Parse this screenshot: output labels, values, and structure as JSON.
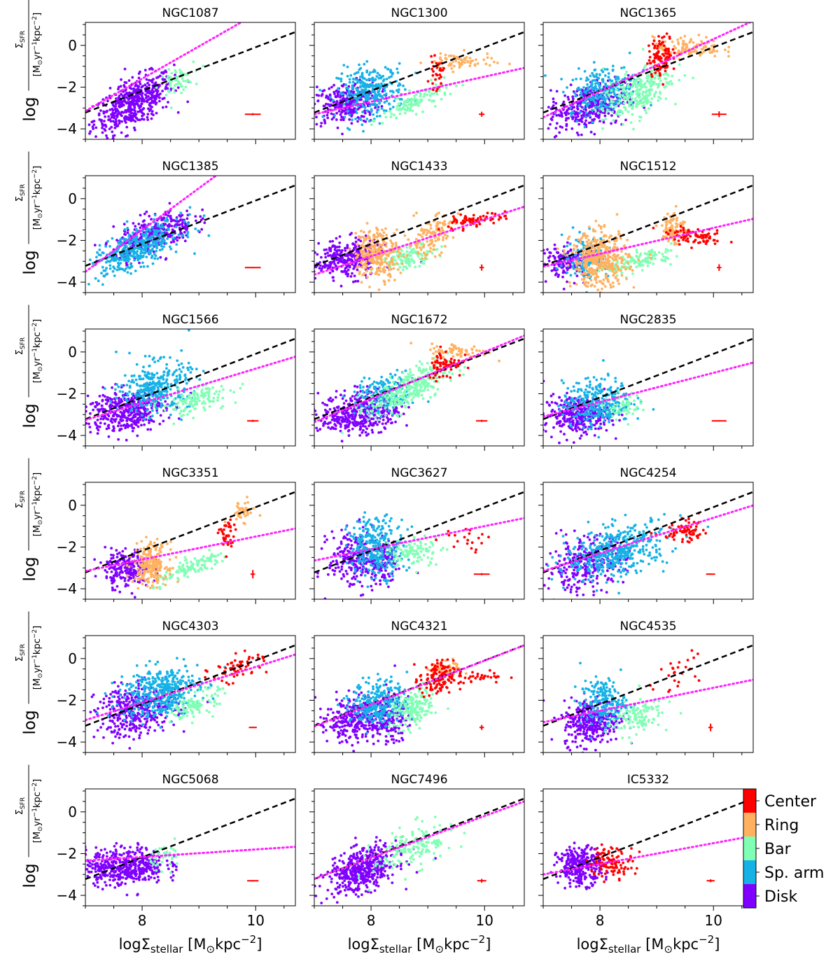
{
  "chart_data": {
    "type": "scatter",
    "layout": "6 rows x 3 columns of small-multiple scatter panels with shared axes",
    "xlabel": {
      "prefix": "log",
      "symbol": "Σ",
      "sub": "stellar",
      "units": " [M",
      "sun": "⊙",
      "units2": "kpc",
      "exp": "−2",
      "close": "]"
    },
    "ylabel": {
      "prefix": "log",
      "numer": "Σ",
      "numer_sub": "SFR",
      "denom": "[M",
      "denom_sun": "⊙",
      "denom_mid": "yr",
      "exp1": "−1",
      "kpc": "kpc",
      "exp2": "−2",
      "close": "]"
    },
    "xlim": [
      7.0,
      10.7
    ],
    "ylim": [
      -4.5,
      1.1
    ],
    "x_ticks": [
      8,
      10
    ],
    "y_ticks": [
      0,
      -2,
      -4
    ],
    "x_tick_labels": [
      "8",
      "10"
    ],
    "y_tick_labels": [
      "0",
      "−2",
      "−4"
    ],
    "legend": {
      "placement": "colorbar right of bottom-right panel",
      "entries": [
        {
          "label": "Center",
          "color": "#ff0000"
        },
        {
          "label": "Ring",
          "color": "#ffb160"
        },
        {
          "label": "Bar",
          "color": "#80ffb4"
        },
        {
          "label": "Sp. arm",
          "color": "#16b2e6"
        },
        {
          "label": "Disk",
          "color": "#8000ff"
        }
      ]
    },
    "reference_line": {
      "style": "black dashed",
      "slope": 1.043,
      "intercept": -10.52
    },
    "fit_line_style": "magenta dotted",
    "panels": [
      {
        "name": "NGC1087",
        "fit": {
          "slope": 1.55,
          "intercept": -14.0
        },
        "err": {
          "x": 9.95,
          "y": -3.3,
          "dx": 0.14,
          "dy": 0.05
        },
        "regions": [
          {
            "r": "Disk",
            "xc": 7.85,
            "yc": -2.75,
            "sx": 0.35,
            "sy": 0.55,
            "slope": 1.2,
            "n": 520
          },
          {
            "r": "Bar",
            "xc": 8.6,
            "yc": -1.7,
            "sx": 0.15,
            "sy": 0.3,
            "slope": 1.0,
            "n": 60
          }
        ]
      },
      {
        "name": "NGC1300",
        "fit": {
          "slope": 0.6,
          "intercept": -7.5
        },
        "err": {
          "x": 9.95,
          "y": -3.3,
          "dx": 0.05,
          "dy": 0.12
        },
        "regions": [
          {
            "r": "Disk",
            "xc": 7.55,
            "yc": -2.8,
            "sx": 0.3,
            "sy": 0.5,
            "slope": 0.3,
            "n": 300
          },
          {
            "r": "Sp. arm",
            "xc": 8.0,
            "yc": -2.2,
            "sx": 0.3,
            "sy": 0.6,
            "slope": 0.2,
            "n": 300
          },
          {
            "r": "Bar",
            "xc": 8.8,
            "yc": -2.7,
            "sx": 0.3,
            "sy": 0.25,
            "slope": 1.2,
            "n": 120
          },
          {
            "r": "Center",
            "xc": 9.15,
            "yc": -1.4,
            "sx": 0.06,
            "sy": 0.35,
            "slope": 0,
            "n": 30
          },
          {
            "r": "Ring",
            "xc": 9.55,
            "yc": -0.8,
            "sx": 0.3,
            "sy": 0.22,
            "slope": 0,
            "n": 70
          }
        ]
      },
      {
        "name": "NGC1365",
        "fit": {
          "slope": 1.25,
          "intercept": -12.2
        },
        "err": {
          "x": 10.1,
          "y": -3.3,
          "dx": 0.13,
          "dy": 0.14
        },
        "regions": [
          {
            "r": "Disk",
            "xc": 7.8,
            "yc": -2.9,
            "sx": 0.35,
            "sy": 0.55,
            "slope": 0.5,
            "n": 380
          },
          {
            "r": "Sp. arm",
            "xc": 8.05,
            "yc": -2.1,
            "sx": 0.3,
            "sy": 0.55,
            "slope": 0.5,
            "n": 250
          },
          {
            "r": "Bar",
            "xc": 8.65,
            "yc": -2.3,
            "sx": 0.3,
            "sy": 0.55,
            "slope": 1.3,
            "n": 260
          },
          {
            "r": "Center",
            "xc": 9.1,
            "yc": -0.5,
            "sx": 0.12,
            "sy": 0.45,
            "slope": 0.6,
            "n": 110
          },
          {
            "r": "Ring",
            "xc": 9.55,
            "yc": -0.1,
            "sx": 0.3,
            "sy": 0.25,
            "slope": 0,
            "n": 110
          }
        ]
      },
      {
        "name": "NGC1385",
        "fit": {
          "slope": 2.0,
          "intercept": -17.5
        },
        "err": {
          "x": 9.95,
          "y": -3.3,
          "dx": 0.14,
          "dy": 0.03
        },
        "regions": [
          {
            "r": "Sp. arm",
            "xc": 7.9,
            "yc": -2.4,
            "sx": 0.4,
            "sy": 0.45,
            "slope": 1.1,
            "n": 420
          },
          {
            "r": "Disk",
            "xc": 8.2,
            "yc": -1.7,
            "sx": 0.35,
            "sy": 0.45,
            "slope": 0.9,
            "n": 330
          }
        ]
      },
      {
        "name": "NGC1433",
        "fit": {
          "slope": 0.88,
          "intercept": -9.8
        },
        "err": {
          "x": 9.95,
          "y": -3.3,
          "dx": 0.04,
          "dy": 0.15
        },
        "regions": [
          {
            "r": "Disk",
            "xc": 7.6,
            "yc": -2.9,
            "sx": 0.3,
            "sy": 0.45,
            "slope": 0.2,
            "n": 330
          },
          {
            "r": "Ring",
            "xc": 8.1,
            "yc": -2.6,
            "sx": 0.2,
            "sy": 0.6,
            "slope": 0,
            "n": 280
          },
          {
            "r": "Bar",
            "xc": 8.65,
            "yc": -2.8,
            "sx": 0.25,
            "sy": 0.25,
            "slope": 0.7,
            "n": 120
          },
          {
            "r": "Ring",
            "xc": 9.05,
            "yc": -1.8,
            "sx": 0.2,
            "sy": 0.45,
            "slope": 1.0,
            "n": 130
          },
          {
            "r": "Center",
            "xc": 9.75,
            "yc": -1.1,
            "sx": 0.3,
            "sy": 0.15,
            "slope": 0.5,
            "n": 70
          }
        ]
      },
      {
        "name": "NGC1512",
        "fit": {
          "slope": 0.62,
          "intercept": -7.6
        },
        "err": {
          "x": 10.1,
          "y": -3.3,
          "dx": 0.04,
          "dy": 0.16
        },
        "regions": [
          {
            "r": "Disk",
            "xc": 7.45,
            "yc": -3.0,
            "sx": 0.25,
            "sy": 0.4,
            "slope": 0,
            "n": 160
          },
          {
            "r": "Sp. arm",
            "xc": 7.75,
            "yc": -2.8,
            "sx": 0.2,
            "sy": 0.5,
            "slope": 0,
            "n": 140
          },
          {
            "r": "Ring",
            "xc": 8.0,
            "yc": -2.9,
            "sx": 0.25,
            "sy": 0.65,
            "slope": 0,
            "n": 420
          },
          {
            "r": "Bar",
            "xc": 8.7,
            "yc": -3.0,
            "sx": 0.3,
            "sy": 0.22,
            "slope": 0.7,
            "n": 130
          },
          {
            "r": "Ring",
            "xc": 9.3,
            "yc": -1.4,
            "sx": 0.1,
            "sy": 0.4,
            "slope": 0,
            "n": 90
          },
          {
            "r": "Center",
            "xc": 9.7,
            "yc": -1.85,
            "sx": 0.25,
            "sy": 0.18,
            "slope": -0.3,
            "n": 80
          }
        ]
      },
      {
        "name": "NGC1566",
        "fit": {
          "slope": 0.82,
          "intercept": -9.0
        },
        "err": {
          "x": 9.95,
          "y": -3.3,
          "dx": 0.1,
          "dy": 0.05
        },
        "regions": [
          {
            "r": "Disk",
            "xc": 7.7,
            "yc": -2.8,
            "sx": 0.35,
            "sy": 0.5,
            "slope": 0.2,
            "n": 400
          },
          {
            "r": "Sp. arm",
            "xc": 8.25,
            "yc": -1.7,
            "sx": 0.3,
            "sy": 0.6,
            "slope": 0.3,
            "n": 330
          },
          {
            "r": "Bar",
            "xc": 8.95,
            "yc": -2.3,
            "sx": 0.3,
            "sy": 0.3,
            "slope": 0.8,
            "n": 130
          }
        ]
      },
      {
        "name": "NGC1672",
        "fit": {
          "slope": 1.12,
          "intercept": -11.2
        },
        "err": {
          "x": 9.95,
          "y": -3.3,
          "dx": 0.1,
          "dy": 0.05
        },
        "regions": [
          {
            "r": "Disk",
            "xc": 7.8,
            "yc": -2.9,
            "sx": 0.35,
            "sy": 0.5,
            "slope": 0.3,
            "n": 420
          },
          {
            "r": "Sp. arm",
            "xc": 8.25,
            "yc": -2.0,
            "sx": 0.25,
            "sy": 0.45,
            "slope": 0.3,
            "n": 180
          },
          {
            "r": "Bar",
            "xc": 8.65,
            "yc": -1.8,
            "sx": 0.35,
            "sy": 0.45,
            "slope": 1.2,
            "n": 300
          },
          {
            "r": "Center",
            "xc": 9.3,
            "yc": -0.6,
            "sx": 0.15,
            "sy": 0.35,
            "slope": 0.3,
            "n": 70
          },
          {
            "r": "Ring",
            "xc": 9.55,
            "yc": 0.0,
            "sx": 0.25,
            "sy": 0.2,
            "slope": 0,
            "n": 70
          }
        ]
      },
      {
        "name": "NGC2835",
        "fit": {
          "slope": 0.7,
          "intercept": -8.0
        },
        "err": {
          "x": 10.1,
          "y": -3.3,
          "dx": 0.13,
          "dy": 0.03
        },
        "regions": [
          {
            "r": "Disk",
            "xc": 7.6,
            "yc": -3.0,
            "sx": 0.3,
            "sy": 0.45,
            "slope": 0,
            "n": 320
          },
          {
            "r": "Sp. arm",
            "xc": 7.95,
            "yc": -2.4,
            "sx": 0.3,
            "sy": 0.55,
            "slope": 0.2,
            "n": 300
          },
          {
            "r": "Bar",
            "xc": 8.4,
            "yc": -2.6,
            "sx": 0.15,
            "sy": 0.3,
            "slope": 0.5,
            "n": 60
          }
        ]
      },
      {
        "name": "NGC3351",
        "fit": {
          "slope": 0.55,
          "intercept": -7.0
        },
        "err": {
          "x": 9.95,
          "y": -3.3,
          "dx": 0.04,
          "dy": 0.2
        },
        "regions": [
          {
            "r": "Disk",
            "xc": 7.75,
            "yc": -3.0,
            "sx": 0.2,
            "sy": 0.45,
            "slope": 0,
            "n": 240
          },
          {
            "r": "Ring",
            "xc": 8.15,
            "yc": -2.8,
            "sx": 0.15,
            "sy": 0.5,
            "slope": 0,
            "n": 220
          },
          {
            "r": "Bar",
            "xc": 8.9,
            "yc": -3.0,
            "sx": 0.35,
            "sy": 0.2,
            "slope": 1.1,
            "n": 120
          },
          {
            "r": "Center",
            "xc": 9.5,
            "yc": -1.5,
            "sx": 0.07,
            "sy": 0.4,
            "slope": 0,
            "n": 40
          },
          {
            "r": "Ring",
            "xc": 9.75,
            "yc": -0.3,
            "sx": 0.12,
            "sy": 0.25,
            "slope": 0,
            "n": 40
          }
        ]
      },
      {
        "name": "NGC3627",
        "fit": {
          "slope": 0.55,
          "intercept": -6.5
        },
        "err": {
          "x": 9.95,
          "y": -3.3,
          "dx": 0.14,
          "dy": 0.05
        },
        "regions": [
          {
            "r": "Disk",
            "xc": 7.75,
            "yc": -2.6,
            "sx": 0.25,
            "sy": 0.7,
            "slope": 0,
            "n": 260
          },
          {
            "r": "Sp. arm",
            "xc": 8.1,
            "yc": -2.0,
            "sx": 0.25,
            "sy": 0.7,
            "slope": 0,
            "n": 300
          },
          {
            "r": "Disk",
            "xc": 8.25,
            "yc": -2.7,
            "sx": 0.1,
            "sy": 0.5,
            "slope": 0,
            "n": 90
          },
          {
            "r": "Bar",
            "xc": 8.75,
            "yc": -2.2,
            "sx": 0.25,
            "sy": 0.35,
            "slope": 0.3,
            "n": 110
          },
          {
            "r": "Center",
            "xc": 9.6,
            "yc": -1.6,
            "sx": 0.25,
            "sy": 0.3,
            "slope": 0,
            "n": 20
          }
        ]
      },
      {
        "name": "NGC4254",
        "fit": {
          "slope": 0.85,
          "intercept": -9.1
        },
        "err": {
          "x": 9.95,
          "y": -3.3,
          "dx": 0.08,
          "dy": 0.03
        },
        "regions": [
          {
            "r": "Disk",
            "xc": 7.75,
            "yc": -2.8,
            "sx": 0.35,
            "sy": 0.6,
            "slope": 0.5,
            "n": 320
          },
          {
            "r": "Sp. arm",
            "xc": 8.3,
            "yc": -2.2,
            "sx": 0.45,
            "sy": 0.6,
            "slope": 0.6,
            "n": 430
          },
          {
            "r": "Center",
            "xc": 9.5,
            "yc": -1.3,
            "sx": 0.2,
            "sy": 0.25,
            "slope": 0.4,
            "n": 70
          }
        ]
      },
      {
        "name": "NGC4303",
        "fit": {
          "slope": 0.85,
          "intercept": -8.9
        },
        "err": {
          "x": 9.95,
          "y": -3.3,
          "dx": 0.07,
          "dy": 0.03
        },
        "regions": [
          {
            "r": "Disk",
            "xc": 7.9,
            "yc": -2.5,
            "sx": 0.35,
            "sy": 0.6,
            "slope": 0.3,
            "n": 380
          },
          {
            "r": "Sp. arm",
            "xc": 8.3,
            "yc": -1.6,
            "sx": 0.35,
            "sy": 0.6,
            "slope": 0.4,
            "n": 400
          },
          {
            "r": "Bar",
            "xc": 8.95,
            "yc": -2.2,
            "sx": 0.2,
            "sy": 0.3,
            "slope": 0.9,
            "n": 110
          },
          {
            "r": "Center",
            "xc": 9.7,
            "yc": -0.4,
            "sx": 0.25,
            "sy": 0.3,
            "slope": 0.6,
            "n": 60
          }
        ]
      },
      {
        "name": "NGC4321",
        "fit": {
          "slope": 1.05,
          "intercept": -10.6
        },
        "err": {
          "x": 9.95,
          "y": -3.3,
          "dx": 0.04,
          "dy": 0.12
        },
        "regions": [
          {
            "r": "Disk",
            "xc": 7.75,
            "yc": -2.9,
            "sx": 0.35,
            "sy": 0.55,
            "slope": 0.3,
            "n": 350
          },
          {
            "r": "Sp. arm",
            "xc": 8.15,
            "yc": -2.1,
            "sx": 0.25,
            "sy": 0.55,
            "slope": 0.3,
            "n": 280
          },
          {
            "r": "Disk",
            "xc": 8.35,
            "yc": -2.9,
            "sx": 0.15,
            "sy": 0.5,
            "slope": 0,
            "n": 100
          },
          {
            "r": "Bar",
            "xc": 8.75,
            "yc": -2.4,
            "sx": 0.2,
            "sy": 0.45,
            "slope": 1.0,
            "n": 170
          },
          {
            "r": "Center",
            "xc": 9.15,
            "yc": -1.0,
            "sx": 0.15,
            "sy": 0.45,
            "slope": 0,
            "n": 120
          },
          {
            "r": "Ring",
            "xc": 9.35,
            "yc": -0.5,
            "sx": 0.15,
            "sy": 0.2,
            "slope": 0,
            "n": 50
          },
          {
            "r": "Center",
            "xc": 9.8,
            "yc": -0.85,
            "sx": 0.3,
            "sy": 0.15,
            "slope": 0,
            "n": 40
          }
        ]
      },
      {
        "name": "NGC4535",
        "fit": {
          "slope": 0.55,
          "intercept": -6.9
        },
        "err": {
          "x": 9.95,
          "y": -3.3,
          "dx": 0.04,
          "dy": 0.18
        },
        "regions": [
          {
            "r": "Disk",
            "xc": 7.85,
            "yc": -3.0,
            "sx": 0.25,
            "sy": 0.55,
            "slope": 0.2,
            "n": 330
          },
          {
            "r": "Sp. arm",
            "xc": 8.05,
            "yc": -2.1,
            "sx": 0.2,
            "sy": 0.55,
            "slope": 0.2,
            "n": 200
          },
          {
            "r": "Bar",
            "xc": 8.6,
            "yc": -2.8,
            "sx": 0.25,
            "sy": 0.4,
            "slope": 0.7,
            "n": 120
          },
          {
            "r": "Center",
            "xc": 9.35,
            "yc": -0.9,
            "sx": 0.25,
            "sy": 0.45,
            "slope": 1.5,
            "n": 25
          }
        ]
      },
      {
        "name": "NGC5068",
        "fit": {
          "slope": 0.18,
          "intercept": -3.6
        },
        "err": {
          "x": 9.95,
          "y": -3.3,
          "dx": 0.1,
          "dy": 0.03
        },
        "regions": [
          {
            "r": "Disk",
            "xc": 7.7,
            "yc": -2.6,
            "sx": 0.35,
            "sy": 0.45,
            "slope": 0.1,
            "n": 450
          },
          {
            "r": "Bar",
            "xc": 8.45,
            "yc": -2.1,
            "sx": 0.15,
            "sy": 0.3,
            "slope": 0,
            "n": 45
          }
        ]
      },
      {
        "name": "NGC7496",
        "fit": {
          "slope": 1.0,
          "intercept": -10.2
        },
        "err": {
          "x": 9.95,
          "y": -3.3,
          "dx": 0.08,
          "dy": 0.09
        },
        "regions": [
          {
            "r": "Disk",
            "xc": 7.85,
            "yc": -2.8,
            "sx": 0.3,
            "sy": 0.5,
            "slope": 0.8,
            "n": 480
          },
          {
            "r": "Bar",
            "xc": 8.75,
            "yc": -1.7,
            "sx": 0.35,
            "sy": 0.5,
            "slope": 0.9,
            "n": 170
          }
        ]
      },
      {
        "name": "IC5332",
        "fit": {
          "slope": 0.5,
          "intercept": -6.5
        },
        "err": {
          "x": 9.95,
          "y": -3.3,
          "dx": 0.07,
          "dy": 0.07
        },
        "regions": [
          {
            "r": "Disk",
            "xc": 7.65,
            "yc": -2.6,
            "sx": 0.2,
            "sy": 0.45,
            "slope": 0,
            "n": 280
          },
          {
            "r": "Center",
            "xc": 8.2,
            "yc": -2.4,
            "sx": 0.2,
            "sy": 0.35,
            "slope": 0,
            "n": 110
          }
        ]
      }
    ]
  }
}
